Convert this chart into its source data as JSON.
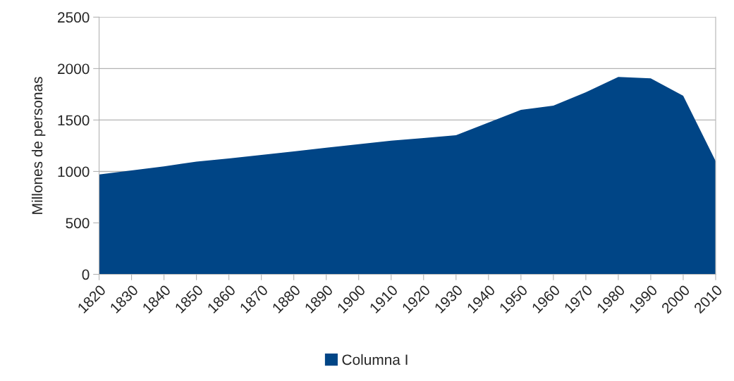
{
  "chart_data": {
    "type": "area",
    "ylabel": "Millones de personas",
    "x": [
      1820,
      1830,
      1840,
      1850,
      1860,
      1870,
      1880,
      1890,
      1900,
      1910,
      1920,
      1930,
      1940,
      1950,
      1960,
      1970,
      1980,
      1990,
      2000,
      2010
    ],
    "series": [
      {
        "name": "Columna I",
        "color": "#004586",
        "values": [
          970,
          1010,
          1050,
          1095,
          1127,
          1160,
          1195,
          1230,
          1265,
          1300,
          1325,
          1352,
          1475,
          1598,
          1640,
          1770,
          1919,
          1905,
          1735,
          1100
        ]
      }
    ],
    "xlim": [
      1820,
      2010
    ],
    "xticks": [
      1820,
      1830,
      1840,
      1850,
      1860,
      1870,
      1880,
      1890,
      1900,
      1910,
      1920,
      1930,
      1940,
      1950,
      1960,
      1970,
      1980,
      1990,
      2000,
      2010
    ],
    "ylim": [
      0,
      2500
    ],
    "yticks": [
      0,
      500,
      1000,
      1500,
      2000,
      2500
    ],
    "grid": "y",
    "legend": "bottom"
  }
}
